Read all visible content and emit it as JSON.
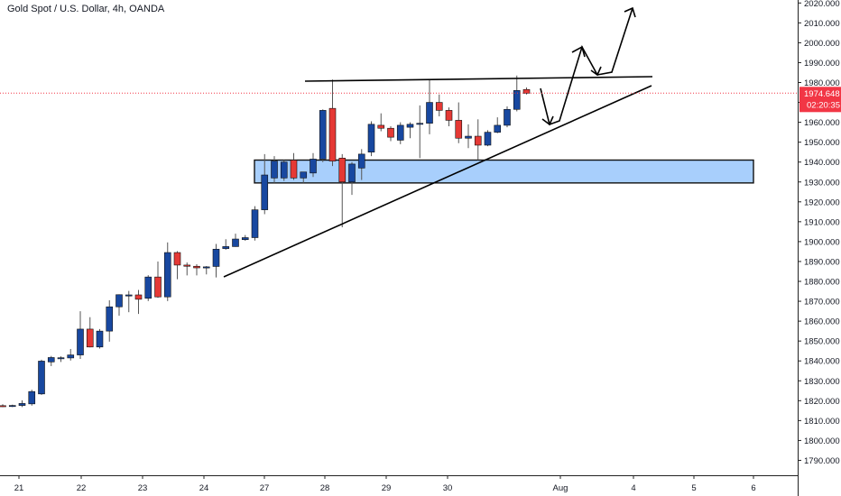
{
  "title": "Gold Spot / U.S. Dollar, 4h, OANDA",
  "price_tag": {
    "value": "1974.648",
    "timer": "02:20:35",
    "color": "#f23645"
  },
  "colors": {
    "up": "#1848a0",
    "down": "#e53935",
    "zone_fill": "#90c1fb",
    "zone_stroke": "#111111",
    "axis_border": "#222222"
  },
  "chart_data": {
    "type": "candlestick",
    "x_ticks": [
      "21",
      "22",
      "23",
      "24",
      "27",
      "28",
      "29",
      "30",
      "Aug",
      "4",
      "5",
      "6"
    ],
    "y_ticks": [
      "2020.000",
      "2010.000",
      "2000.000",
      "1990.000",
      "1980.000",
      "1970.000",
      "1960.000",
      "1950.000",
      "1940.000",
      "1930.000",
      "1920.000",
      "1910.000",
      "1900.000",
      "1890.000",
      "1880.000",
      "1870.000",
      "1860.000",
      "1850.000",
      "1840.000",
      "1830.000",
      "1820.000",
      "1810.000",
      "1800.000",
      "1790.000"
    ],
    "ylim": [
      1782.5,
      2021.5
    ],
    "candles": [
      {
        "o": 1817.5,
        "h": 1818.2,
        "l": 1816.8,
        "c": 1817.2
      },
      {
        "o": 1817.2,
        "h": 1818.0,
        "l": 1816.8,
        "c": 1817.6
      },
      {
        "o": 1817.6,
        "h": 1820.2,
        "l": 1816.8,
        "c": 1818.6
      },
      {
        "o": 1818.4,
        "h": 1825.5,
        "l": 1817.5,
        "c": 1824.6
      },
      {
        "o": 1823.4,
        "h": 1840.6,
        "l": 1822.9,
        "c": 1839.9
      },
      {
        "o": 1839.5,
        "h": 1842.5,
        "l": 1837.4,
        "c": 1841.7
      },
      {
        "o": 1841.2,
        "h": 1842.3,
        "l": 1839.5,
        "c": 1841.6
      },
      {
        "o": 1841.5,
        "h": 1846.0,
        "l": 1840.2,
        "c": 1843.0
      },
      {
        "o": 1843.0,
        "h": 1865.0,
        "l": 1841.0,
        "c": 1856.0
      },
      {
        "o": 1856.0,
        "h": 1862.0,
        "l": 1846.8,
        "c": 1847.0
      },
      {
        "o": 1847.0,
        "h": 1856.0,
        "l": 1846.2,
        "c": 1855.0
      },
      {
        "o": 1855.0,
        "h": 1870.5,
        "l": 1849.7,
        "c": 1867.2
      },
      {
        "o": 1867.2,
        "h": 1873.5,
        "l": 1862.7,
        "c": 1873.3
      },
      {
        "o": 1872.7,
        "h": 1875.2,
        "l": 1864.5,
        "c": 1873.2
      },
      {
        "o": 1873.2,
        "h": 1875.7,
        "l": 1863.6,
        "c": 1871.0
      },
      {
        "o": 1871.5,
        "h": 1883.1,
        "l": 1870.1,
        "c": 1882.2
      },
      {
        "o": 1882.2,
        "h": 1890.0,
        "l": 1871.7,
        "c": 1872.2
      },
      {
        "o": 1872.2,
        "h": 1899.6,
        "l": 1870.1,
        "c": 1894.5
      },
      {
        "o": 1894.5,
        "h": 1895.2,
        "l": 1881.1,
        "c": 1888.2
      },
      {
        "o": 1888.2,
        "h": 1889.5,
        "l": 1883.0,
        "c": 1887.6
      },
      {
        "o": 1887.6,
        "h": 1888.6,
        "l": 1883.0,
        "c": 1886.8
      },
      {
        "o": 1886.8,
        "h": 1887.7,
        "l": 1883.5,
        "c": 1887.3
      },
      {
        "o": 1887.5,
        "h": 1898.8,
        "l": 1882.0,
        "c": 1896.2
      },
      {
        "o": 1896.5,
        "h": 1901.2,
        "l": 1895.9,
        "c": 1897.5
      },
      {
        "o": 1897.5,
        "h": 1904.0,
        "l": 1897.4,
        "c": 1901.3
      },
      {
        "o": 1901.0,
        "h": 1903.3,
        "l": 1900.4,
        "c": 1902.0
      },
      {
        "o": 1902.0,
        "h": 1917.8,
        "l": 1900.5,
        "c": 1916.0
      },
      {
        "o": 1916.0,
        "h": 1944.0,
        "l": 1913.8,
        "c": 1933.5
      },
      {
        "o": 1932.0,
        "h": 1943.0,
        "l": 1929.5,
        "c": 1940.5
      },
      {
        "o": 1932.0,
        "h": 1941.0,
        "l": 1930.5,
        "c": 1940.0
      },
      {
        "o": 1941.0,
        "h": 1944.5,
        "l": 1931.0,
        "c": 1932.0
      },
      {
        "o": 1932.0,
        "h": 1935.0,
        "l": 1929.5,
        "c": 1935.0
      },
      {
        "o": 1934.5,
        "h": 1944.5,
        "l": 1932.5,
        "c": 1941.5
      },
      {
        "o": 1941.5,
        "h": 1966.5,
        "l": 1940.0,
        "c": 1966.0
      },
      {
        "o": 1967.0,
        "h": 1981.5,
        "l": 1938.0,
        "c": 1940.5
      },
      {
        "o": 1942.0,
        "h": 1944.0,
        "l": 1907.2,
        "c": 1930.0
      },
      {
        "o": 1930.0,
        "h": 1940.0,
        "l": 1923.5,
        "c": 1939.0
      },
      {
        "o": 1937.0,
        "h": 1946.5,
        "l": 1931.0,
        "c": 1944.0
      },
      {
        "o": 1945.0,
        "h": 1960.5,
        "l": 1943.0,
        "c": 1959.0
      },
      {
        "o": 1958.5,
        "h": 1964.5,
        "l": 1955.5,
        "c": 1957.0
      },
      {
        "o": 1957.0,
        "h": 1958.0,
        "l": 1950.5,
        "c": 1952.5
      },
      {
        "o": 1951.0,
        "h": 1960.0,
        "l": 1949.0,
        "c": 1958.5
      },
      {
        "o": 1957.5,
        "h": 1960.0,
        "l": 1952.0,
        "c": 1959.0
      },
      {
        "o": 1959.0,
        "h": 1968.5,
        "l": 1942.0,
        "c": 1959.5
      },
      {
        "o": 1959.5,
        "h": 1981.5,
        "l": 1954.0,
        "c": 1970.0
      },
      {
        "o": 1970.0,
        "h": 1974.0,
        "l": 1963.0,
        "c": 1966.0
      },
      {
        "o": 1966.0,
        "h": 1967.5,
        "l": 1958.0,
        "c": 1961.0
      },
      {
        "o": 1961.0,
        "h": 1970.0,
        "l": 1949.5,
        "c": 1952.0
      },
      {
        "o": 1952.0,
        "h": 1959.0,
        "l": 1947.0,
        "c": 1953.0
      },
      {
        "o": 1953.0,
        "h": 1961.5,
        "l": 1941.0,
        "c": 1948.5
      },
      {
        "o": 1948.5,
        "h": 1956.0,
        "l": 1948.0,
        "c": 1955.0
      },
      {
        "o": 1955.0,
        "h": 1962.5,
        "l": 1954.5,
        "c": 1958.5
      },
      {
        "o": 1958.5,
        "h": 1968.0,
        "l": 1957.5,
        "c": 1966.5
      },
      {
        "o": 1966.5,
        "h": 1983.5,
        "l": 1965.5,
        "c": 1976.0
      },
      {
        "o": 1976.5,
        "h": 1977.5,
        "l": 1974.0,
        "c": 1974.6
      }
    ],
    "support_zone": {
      "top": 1941.0,
      "bottom": 1929.5
    },
    "current_price": 1974.648
  }
}
